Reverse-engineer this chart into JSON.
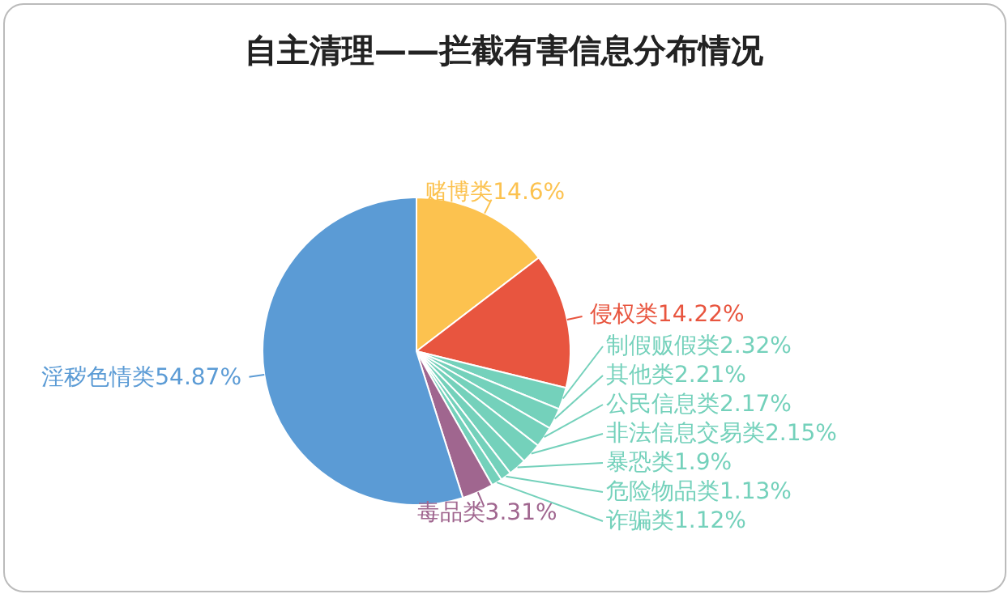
{
  "chart_data": {
    "type": "pie",
    "title": "自主清理——拦截有害信息分布情况",
    "categories": [
      "赌博类",
      "侵权类",
      "制假贩假类",
      "其他类",
      "公民信息类",
      "非法信息交易类",
      "暴恐类",
      "危险物品类",
      "诈骗类",
      "毒品类",
      "淫秽色情类"
    ],
    "values": [
      14.6,
      14.22,
      2.32,
      2.21,
      2.17,
      2.15,
      1.9,
      1.13,
      1.12,
      3.31,
      54.87
    ],
    "value_labels": [
      "14.6%",
      "14.22%",
      "2.32%",
      "2.21%",
      "2.17%",
      "2.15%",
      "1.9%",
      "1.13%",
      "1.12%",
      "3.31%",
      "54.87%"
    ],
    "colors": [
      "#fcc24f",
      "#e8553f",
      "#74d1bb",
      "#74d1bb",
      "#74d1bb",
      "#74d1bb",
      "#74d1bb",
      "#74d1bb",
      "#74d1bb",
      "#a0668f",
      "#5b9bd5"
    ],
    "legend": false
  }
}
